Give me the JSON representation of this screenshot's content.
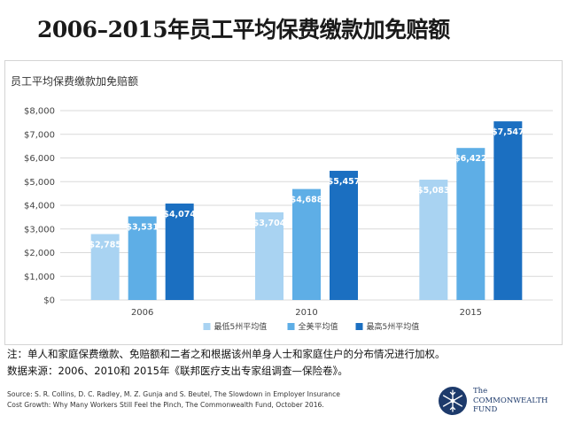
{
  "page": {
    "title": "2006–2015年员工平均保费缴款加免赔额"
  },
  "chart_panel": {
    "title": "员工平均保费缴款加免赔额"
  },
  "chart_data": {
    "type": "bar",
    "title": "员工平均保费缴款加免赔额",
    "categories": [
      "2006",
      "2010",
      "2015"
    ],
    "series": [
      {
        "name": "最低5州平均值",
        "values": [
          2785,
          3704,
          5083
        ],
        "labels": [
          "$2,785",
          "$3,704",
          "$5,083"
        ],
        "color": "#a9d3f2"
      },
      {
        "name": "全美平均值",
        "values": [
          3531,
          4688,
          6422
        ],
        "labels": [
          "$3,531",
          "$4,688",
          "$6,422"
        ],
        "color": "#5eaee6"
      },
      {
        "name": "最高5州平均值",
        "values": [
          4074,
          5457,
          7547
        ],
        "labels": [
          "$4,074",
          "$5,457",
          "$7,547"
        ],
        "color": "#1b6fc1"
      }
    ],
    "y_ticks": [
      "$0",
      "$1,000",
      "$2,000",
      "$3,000",
      "$4,000",
      "$5,000",
      "$6,000",
      "$7,000",
      "$8,000"
    ],
    "ylim": [
      0,
      8000
    ],
    "grid": true,
    "legend_position": "bottom"
  },
  "notes": {
    "line1": "注：单人和家庭保费缴款、免赔额和二者之和根据该州单身人士和家庭住户的分布情况进行加权。",
    "line2": "数据来源：2006、2010和 2015年《联邦医疗支出专家组调查—保险卷》。"
  },
  "source": {
    "line1": "Source: S. R. Collins, D. C. Radley, M. Z. Gunja and S. Beutel, The Slowdown in Employer Insurance",
    "line2": "Cost Growth: Why Many Workers Still Feel the Pinch, The Commonwealth Fund, October 2016."
  },
  "logo": {
    "line1": "The",
    "line2": "COMMONWEALTH",
    "line3": "FUND"
  },
  "colors": {
    "bar_text": "#ffffff",
    "grid": "#d9d9d9",
    "logo_blue": "#1d3a6b"
  }
}
